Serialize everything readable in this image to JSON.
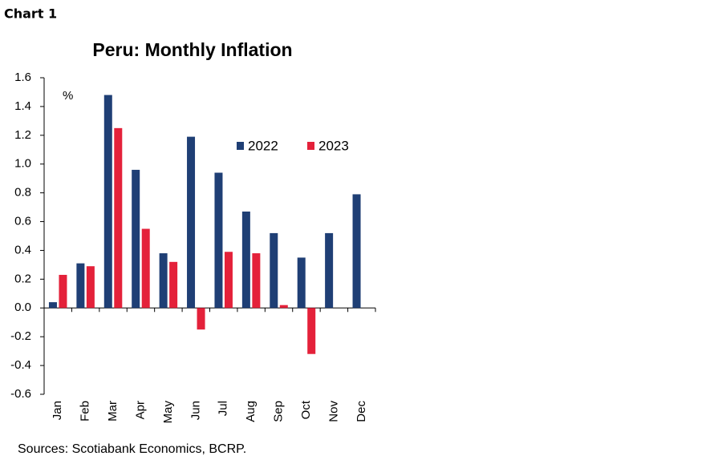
{
  "chart_label": "Chart 1",
  "chart_data": {
    "type": "bar",
    "title": "Peru: Monthly Inflation",
    "y_label": "%",
    "categories": [
      "Jan",
      "Feb",
      "Mar",
      "Apr",
      "May",
      "Jun",
      "Jul",
      "Aug",
      "Sep",
      "Oct",
      "Nov",
      "Dec"
    ],
    "series": [
      {
        "name": "2022",
        "color": "#1f3f75",
        "values": [
          0.04,
          0.31,
          1.48,
          0.96,
          0.38,
          1.19,
          0.94,
          0.67,
          0.52,
          0.35,
          0.52,
          0.79
        ]
      },
      {
        "name": "2023",
        "color": "#e4213a",
        "values": [
          0.23,
          0.29,
          1.25,
          0.55,
          0.32,
          -0.15,
          0.39,
          0.38,
          0.02,
          -0.32,
          null,
          null
        ]
      }
    ],
    "ylim": [
      -0.6,
      1.6
    ],
    "yticks": [
      1.6,
      1.4,
      1.2,
      {
        "value": 1.0,
        "label": "1.0"
      },
      0.8,
      0.6,
      0.4,
      0.2,
      {
        "value": 0.0,
        "label": "0.0"
      },
      -0.2,
      -0.4,
      -0.6
    ],
    "legend": "upper right",
    "source": "Sources: Scotiabank Economics, BCRP."
  }
}
